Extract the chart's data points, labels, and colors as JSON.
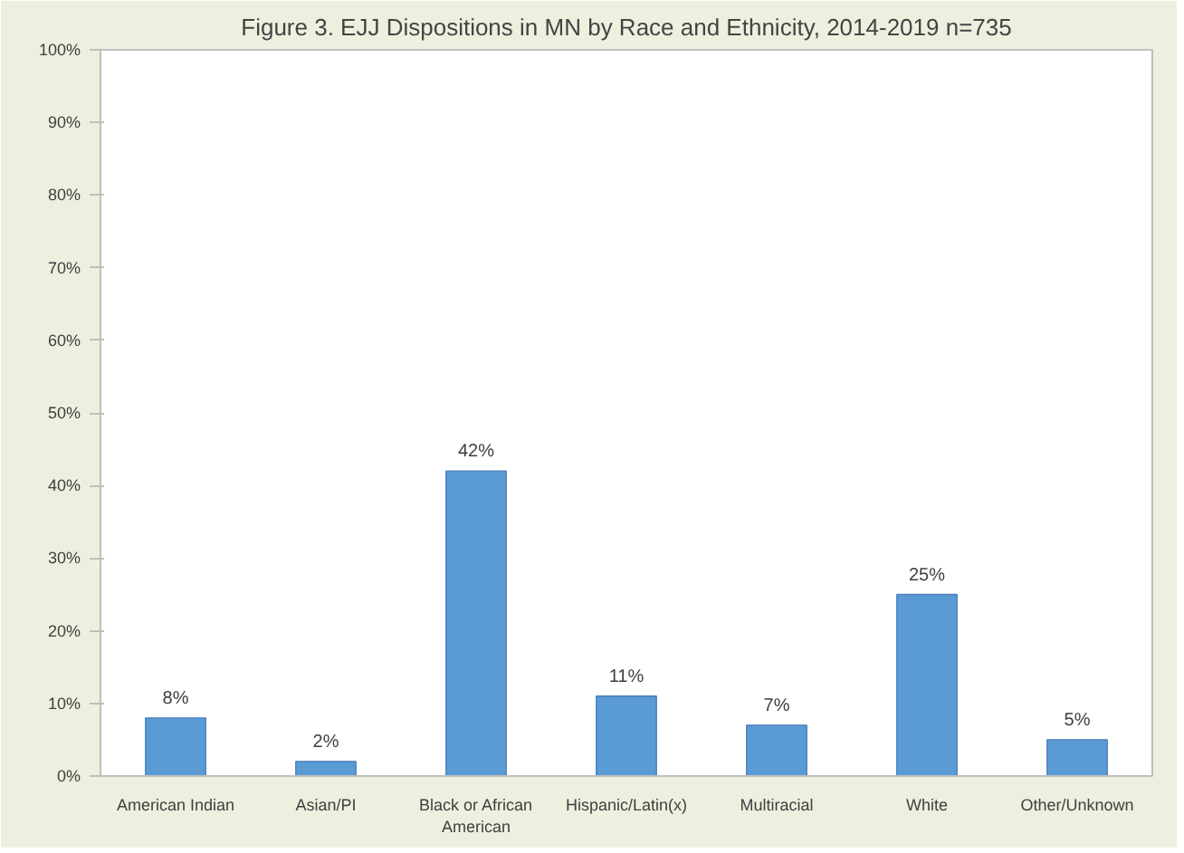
{
  "chart_data": {
    "type": "bar",
    "title": "Figure 3. EJJ Dispositions in MN by Race and Ethnicity, 2014-2019 n=735",
    "categories": [
      "American Indian",
      "Asian/PI",
      "Black or African American",
      "Hispanic/Latin(x)",
      "Multiracial",
      "White",
      "Other/Unknown"
    ],
    "values": [
      8,
      2,
      42,
      11,
      7,
      25,
      5
    ],
    "value_labels": [
      "8%",
      "2%",
      "42%",
      "11%",
      "7%",
      "25%",
      "5%"
    ],
    "color": "#5b9bd5",
    "ylim": [
      0,
      100
    ],
    "yticks": [
      {
        "value": 0,
        "label": "0%"
      },
      {
        "value": 10,
        "label": "10%"
      },
      {
        "value": 20,
        "label": "20%"
      },
      {
        "value": 30,
        "label": "30%"
      },
      {
        "value": 40,
        "label": "40%"
      },
      {
        "value": 50,
        "label": "50%"
      },
      {
        "value": 60,
        "label": "60%"
      },
      {
        "value": 70,
        "label": "70%"
      },
      {
        "value": 80,
        "label": "80%"
      },
      {
        "value": 90,
        "label": "90%"
      },
      {
        "value": 100,
        "label": "100%"
      }
    ],
    "grid": false
  }
}
